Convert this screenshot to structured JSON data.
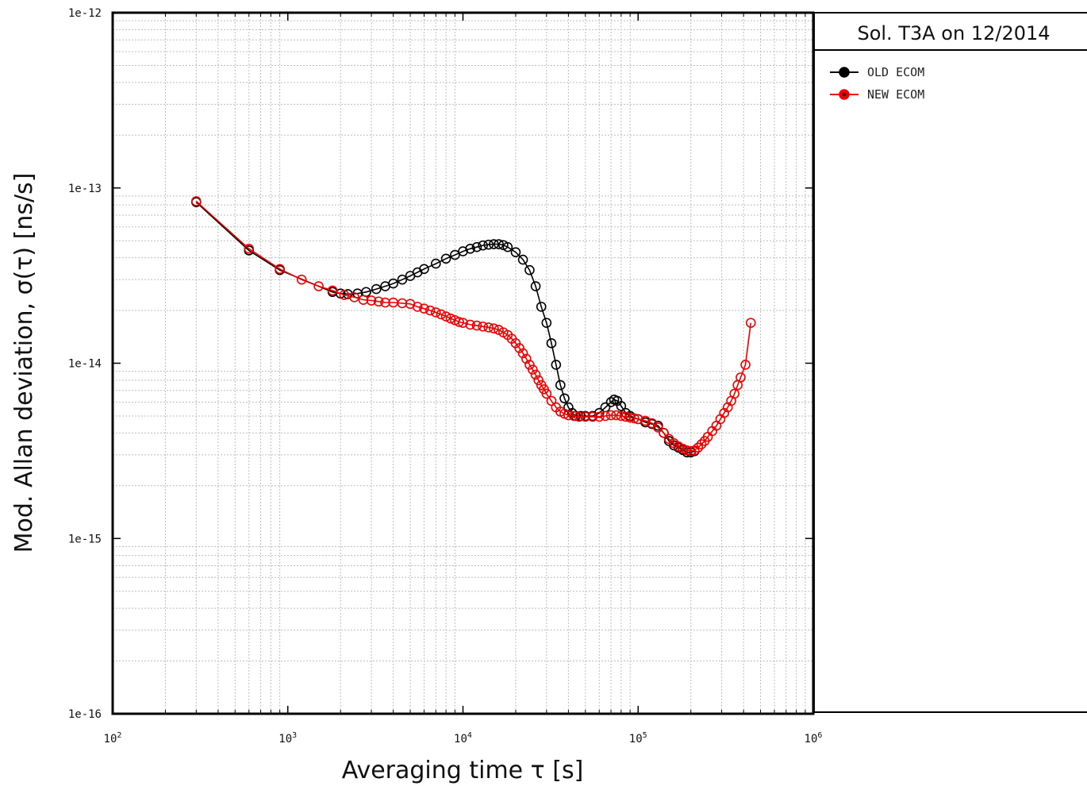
{
  "chart_data": {
    "type": "line",
    "title": "",
    "xlabel": "Averaging time τ [s]",
    "ylabel": "Mod. Allan deviation, σ(τ) [ns/s]",
    "x_scale": "log",
    "y_scale": "log",
    "xlim": [
      100,
      1000000
    ],
    "ylim": [
      1e-16,
      1e-12
    ],
    "grid": true,
    "x_ticks": [
      {
        "value": 100,
        "mant": "10",
        "exp": "2"
      },
      {
        "value": 1000,
        "mant": "10",
        "exp": "3"
      },
      {
        "value": 10000,
        "mant": "10",
        "exp": "4"
      },
      {
        "value": 100000,
        "mant": "10",
        "exp": "5"
      },
      {
        "value": 1000000,
        "mant": "10",
        "exp": "6"
      }
    ],
    "y_ticks": [
      {
        "value": 1e-12,
        "label": "1e-12"
      },
      {
        "value": 1e-13,
        "label": "1e-13"
      },
      {
        "value": 1e-14,
        "label": "1e-14"
      },
      {
        "value": 1e-15,
        "label": "1e-15"
      },
      {
        "value": 1e-16,
        "label": "1e-16"
      }
    ],
    "legend": {
      "title": "Sol. T3A on 12/2014",
      "placement": "right"
    },
    "series": [
      {
        "name": "OLD ECOM",
        "color": "#000000",
        "marker_fill": "#333333",
        "x": [
          300,
          600,
          900,
          1800,
          2000,
          2200,
          2500,
          2800,
          3200,
          3600,
          4000,
          4500,
          5000,
          5500,
          6000,
          7000,
          8000,
          9000,
          10000,
          11000,
          12000,
          13000,
          14000,
          15000,
          16000,
          17000,
          18000,
          20000,
          22000,
          24000,
          26000,
          28000,
          30000,
          32000,
          34000,
          36000,
          38000,
          40000,
          42000,
          44000,
          47000,
          50000,
          55000,
          60000,
          65000,
          70000,
          73000,
          76000,
          80000,
          85000,
          90000,
          100000,
          110000,
          120000,
          130000,
          140000,
          150000,
          160000,
          170000,
          180000,
          190000,
          200000,
          210000
        ],
        "y": [
          8.3e-14,
          4.4e-14,
          3.4e-14,
          2.55e-14,
          2.5e-14,
          2.48e-14,
          2.5e-14,
          2.55e-14,
          2.65e-14,
          2.75e-14,
          2.85e-14,
          3e-14,
          3.15e-14,
          3.3e-14,
          3.45e-14,
          3.7e-14,
          3.95e-14,
          4.15e-14,
          4.35e-14,
          4.5e-14,
          4.6e-14,
          4.7e-14,
          4.75e-14,
          4.78e-14,
          4.78e-14,
          4.72e-14,
          4.6e-14,
          4.3e-14,
          3.9e-14,
          3.4e-14,
          2.75e-14,
          2.1e-14,
          1.7e-14,
          1.3e-14,
          9.8e-15,
          7.5e-15,
          6.3e-15,
          5.6e-15,
          5.2e-15,
          5e-15,
          5e-15,
          5e-15,
          5e-15,
          5.2e-15,
          5.6e-15,
          6e-15,
          6.2e-15,
          6.1e-15,
          5.7e-15,
          5.2e-15,
          5e-15,
          4.8e-15,
          4.6e-15,
          4.5e-15,
          4.4e-15,
          4e-15,
          3.6e-15,
          3.4e-15,
          3.3e-15,
          3.2e-15,
          3.1e-15,
          3.1e-15,
          3.15e-15
        ]
      },
      {
        "name": "NEW ECOM",
        "color": "#ee0000",
        "marker_fill": "none",
        "x": [
          300,
          600,
          900,
          1200,
          1500,
          1800,
          2100,
          2400,
          2700,
          3000,
          3300,
          3600,
          4000,
          4500,
          5000,
          5500,
          6000,
          6500,
          7000,
          7500,
          8000,
          8500,
          9000,
          9500,
          10000,
          11000,
          12000,
          13000,
          14000,
          15000,
          16000,
          17000,
          18000,
          19000,
          20000,
          21000,
          22000,
          23000,
          24000,
          25000,
          26000,
          27000,
          28000,
          29000,
          30000,
          32000,
          34000,
          36000,
          38000,
          40000,
          43000,
          46000,
          50000,
          55000,
          60000,
          65000,
          70000,
          75000,
          80000,
          85000,
          90000,
          95000,
          100000,
          110000,
          120000,
          130000,
          140000,
          150000,
          160000,
          170000,
          180000,
          190000,
          200000,
          210000,
          220000,
          230000,
          240000,
          250000,
          265000,
          280000,
          295000,
          310000,
          325000,
          340000,
          355000,
          370000,
          385000,
          410000,
          440000
        ],
        "y": [
          8.4e-14,
          4.5e-14,
          3.45e-14,
          3e-14,
          2.75e-14,
          2.6e-14,
          2.45e-14,
          2.38e-14,
          2.3e-14,
          2.28e-14,
          2.25e-14,
          2.22e-14,
          2.22e-14,
          2.2e-14,
          2.18e-14,
          2.1e-14,
          2.05e-14,
          2e-14,
          1.95e-14,
          1.9e-14,
          1.85e-14,
          1.8e-14,
          1.76e-14,
          1.72e-14,
          1.7e-14,
          1.66e-14,
          1.64e-14,
          1.62e-14,
          1.6e-14,
          1.58e-14,
          1.55e-14,
          1.5e-14,
          1.45e-14,
          1.38e-14,
          1.3e-14,
          1.22e-14,
          1.14e-14,
          1.06e-14,
          9.8e-15,
          9.2e-15,
          8.6e-15,
          8e-15,
          7.5e-15,
          7.1e-15,
          6.7e-15,
          6.1e-15,
          5.6e-15,
          5.3e-15,
          5.15e-15,
          5.05e-15,
          5e-15,
          4.95e-15,
          4.95e-15,
          4.95e-15,
          4.95e-15,
          5e-15,
          5.05e-15,
          5.05e-15,
          5e-15,
          4.95e-15,
          4.9e-15,
          4.85e-15,
          4.8e-15,
          4.7e-15,
          4.55e-15,
          4.3e-15,
          4e-15,
          3.7e-15,
          3.5e-15,
          3.35e-15,
          3.25e-15,
          3.18e-15,
          3.15e-15,
          3.18e-15,
          3.3e-15,
          3.45e-15,
          3.6e-15,
          3.8e-15,
          4.1e-15,
          4.4e-15,
          4.8e-15,
          5.2e-15,
          5.6e-15,
          6.1e-15,
          6.7e-15,
          7.5e-15,
          8.3e-15,
          9.8e-15,
          1.7e-14
        ]
      }
    ]
  }
}
